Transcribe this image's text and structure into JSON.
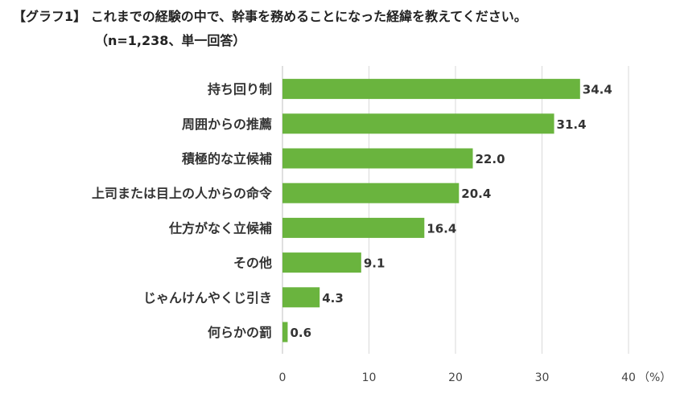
{
  "chart_data": {
    "type": "bar",
    "orientation": "horizontal",
    "title": "【グラフ1】 これまでの経験の中で、幹事を務めることになった経緯を教えてください。",
    "subtitle": "（n=1,238、単一回答）",
    "categories": [
      "持ち回り制",
      "周囲からの推薦",
      "積極的な立候補",
      "上司または目上の人からの命令",
      "仕方がなく立候補",
      "その他",
      "じゃんけんやくじ引き",
      "何らかの罰"
    ],
    "values": [
      34.4,
      31.4,
      22.0,
      20.4,
      16.4,
      9.1,
      4.3,
      0.6
    ],
    "value_labels": [
      "34.4",
      "31.4",
      "22.0",
      "20.4",
      "16.4",
      "9.1",
      "4.3",
      "0.6"
    ],
    "xlim": [
      0,
      40
    ],
    "xticks": [
      0,
      10,
      20,
      30,
      40
    ],
    "xtick_labels": [
      "0",
      "10",
      "20",
      "30",
      "40"
    ],
    "unit_label": "（%）",
    "bar_color": "#6ab43e",
    "grid": true
  }
}
